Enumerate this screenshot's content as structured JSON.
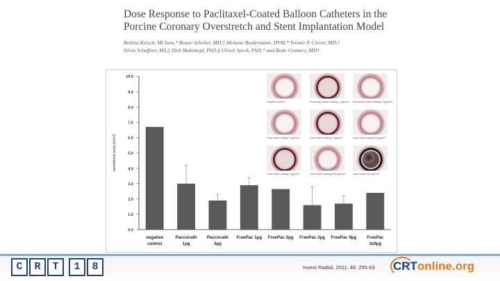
{
  "header": {
    "title_line1": "Dose Response to Paclitaxel-Coated Balloon Catheters in the",
    "title_line2": "Porcine Coronary Overstretch and Stent Implantation Model",
    "authors_line1": "Bettina Kelsch, MChem,* Bruno Scheller, MD,† Melanie Biedermann, DVM,* Yvonne P. Clever, MD,†",
    "authors_line2": "Silvio Schaffner, MS,‡ Dirk Mahnkopf, PhD,§ Ulrich Speck, PhD,* and Bodo Cremers, MD†"
  },
  "chart_data": {
    "type": "bar",
    "ylabel": "neointimal area [mm²]",
    "ylim": [
      0,
      10
    ],
    "yticks": [
      "0.0",
      "1.0",
      "2.0",
      "3.0",
      "4.0",
      "5.0",
      "6.0",
      "7.0",
      "8.0",
      "9.0",
      "10.0"
    ],
    "categories": [
      [
        "negative",
        "control"
      ],
      [
        "Paccocath",
        "1µg"
      ],
      [
        "Paccocath",
        "3µg"
      ],
      [
        "FreePac 1µg"
      ],
      [
        "FreePac 2µg"
      ],
      [
        "FreePac 3µg"
      ],
      [
        "FreePac 9µg"
      ],
      [
        "FreePac",
        "3x9µg"
      ]
    ],
    "series": [
      {
        "values": [
          6.7,
          3.0,
          1.9,
          2.9,
          2.65,
          1.6,
          1.7,
          2.4
        ],
        "error": [
          0,
          1.2,
          0.4,
          0.5,
          0,
          1.2,
          0.5,
          0
        ]
      }
    ],
    "bar_color": "#5a5a5a"
  },
  "micrographs": [
    {
      "label": "negative control",
      "style": "light"
    },
    {
      "label": "Paccocath matrix coating, 1 µg/mm²",
      "style": "dark"
    },
    {
      "label": "Paccocath matrix coating, 3 µg/mm²",
      "style": "light"
    },
    {
      "label": "Urea matrix coating 1 µg/mm²",
      "style": "light"
    },
    {
      "label": "Urea matrix coating 2 µg/mm²",
      "style": "dark"
    },
    {
      "label": "Urea matrix coating 3 µg/mm²",
      "style": "light"
    },
    {
      "label": "Urea matrix coating 9 µg/mm²",
      "style": "dark"
    },
    {
      "label": "Urea matrix coating 3x9 µg/mm²",
      "style": "light"
    },
    {
      "label": "Urea matrix 3x9 µg/mm²",
      "style": "black"
    }
  ],
  "footer": {
    "logo_letters": [
      "C",
      "R",
      "T",
      "1",
      "8"
    ],
    "citation": "Invest Radiol. 2011; 46: 255-63",
    "online_logo_crt": "CRT",
    "online_logo_rest": "online.org"
  }
}
